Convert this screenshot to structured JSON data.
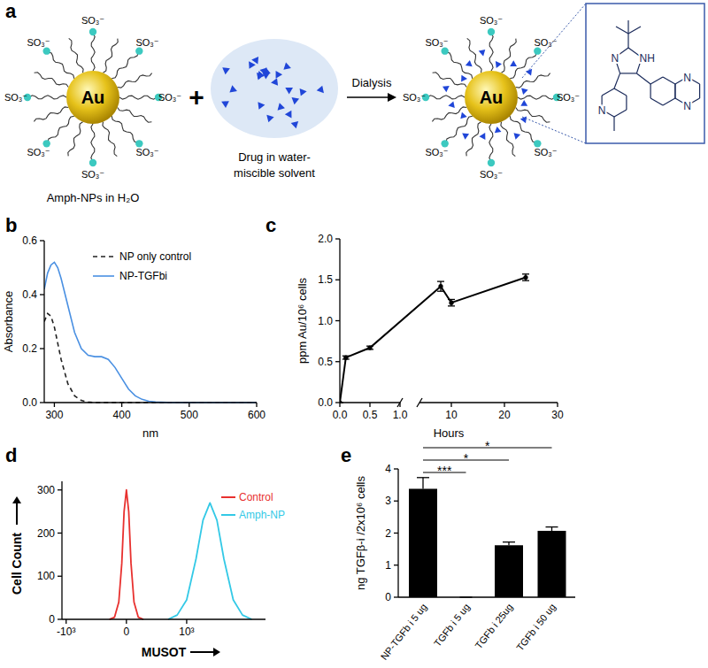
{
  "diagram": {
    "panel": "a",
    "core": "Au",
    "ligand_end": "SO₃⁻",
    "left_label": "Amph-NPs in H₂O",
    "plus": "+",
    "drug_label": [
      "Drug in water-",
      "miscible solvent"
    ],
    "arrow_label": "Dialysis",
    "molecule_atoms": [
      "N",
      "NH",
      "N",
      "N",
      "N"
    ]
  },
  "chart_data": [
    {
      "panel": "b",
      "type": "line",
      "x_label": "nm",
      "y_label": "Absorbance",
      "x": [
        285,
        290,
        295,
        300,
        305,
        310,
        320,
        330,
        340,
        350,
        360,
        370,
        380,
        390,
        400,
        410,
        420,
        430,
        440,
        450,
        475,
        500,
        550,
        600
      ],
      "series": [
        {
          "name": "NP only control",
          "color": "#222222",
          "line_style": "dashed",
          "values": [
            0.3,
            0.33,
            0.32,
            0.28,
            0.22,
            0.16,
            0.07,
            0.025,
            0.008,
            0.002,
            0,
            0,
            0,
            0,
            0,
            0,
            0,
            0,
            0,
            0,
            0,
            0,
            0,
            0
          ]
        },
        {
          "name": "NP-TGFbi",
          "color": "#4a90e2",
          "line_style": "solid",
          "values": [
            0.42,
            0.48,
            0.51,
            0.52,
            0.5,
            0.46,
            0.36,
            0.26,
            0.2,
            0.175,
            0.17,
            0.17,
            0.16,
            0.13,
            0.09,
            0.05,
            0.025,
            0.012,
            0.005,
            0.002,
            0,
            0,
            0,
            0
          ]
        }
      ],
      "xlim": [
        285,
        600
      ],
      "xticks": [
        300,
        400,
        500,
        600
      ],
      "ylim": [
        0,
        0.6
      ],
      "yticks": [
        {
          "value": 0,
          "label": "0.0"
        },
        0.2,
        0.4,
        0.6
      ],
      "legend": "upper center"
    },
    {
      "panel": "c",
      "type": "line",
      "x_label": "Hours",
      "y_label": "ppm Au/10⁶ cells",
      "x": [
        0,
        0.1,
        0.5,
        8,
        10,
        24
      ],
      "values": [
        0,
        0.55,
        0.67,
        1.42,
        1.22,
        1.53
      ],
      "errors": [
        0,
        0.02,
        0.02,
        0.06,
        0.04,
        0.04
      ],
      "color": "#000000",
      "marker": "circle",
      "xlim": [
        0,
        30
      ],
      "x_break": [
        1,
        4
      ],
      "xticks": [
        {
          "value": 0,
          "label": "0.0"
        },
        0.5,
        {
          "value": 1,
          "label": "1.0"
        },
        10,
        20,
        30
      ],
      "ylim": [
        0,
        2
      ],
      "yticks": [
        {
          "value": 0,
          "label": "0.0"
        },
        0.5,
        {
          "value": 1,
          "label": "1.0"
        },
        1.5,
        {
          "value": 2,
          "label": "2.0"
        }
      ]
    },
    {
      "panel": "d",
      "type": "line",
      "x_label": "MUSOT",
      "y_label": "Cell Count",
      "log": "x",
      "series": [
        {
          "name": "Control",
          "color": "#e8312f",
          "x": [
            -120,
            -80,
            -50,
            -30,
            -15,
            0,
            15,
            30,
            50,
            80,
            120
          ],
          "values": [
            0,
            5,
            40,
            130,
            250,
            300,
            250,
            130,
            40,
            5,
            0
          ]
        },
        {
          "name": "Amph-NP",
          "color": "#33c9e6",
          "x": [
            440,
            660,
            1000,
            1500,
            2030,
            2740,
            3700,
            5000,
            7480,
            11130,
            16600
          ],
          "values": [
            0,
            10,
            45,
            140,
            230,
            270,
            230,
            140,
            45,
            10,
            0
          ]
        }
      ],
      "xlim": [
        -1200,
        30000
      ],
      "xticks": [
        {
          "value": -1000,
          "label": "-10³"
        },
        0,
        {
          "value": 1000,
          "label": "10³"
        }
      ],
      "ylim": [
        0,
        320
      ],
      "yticks": [
        0,
        100,
        200,
        300
      ],
      "legend": "upper right"
    },
    {
      "panel": "e",
      "type": "bar",
      "y_label": "ng TGFβ-i /2x10⁶ cells",
      "categories": [
        "NP-TGFb i 5 ug",
        "TGFb i 5 ug",
        "TGFb i 25ug",
        "TGFb i 50 ug"
      ],
      "values": [
        3.38,
        0,
        1.62,
        2.07
      ],
      "errors": [
        0.35,
        0,
        0.1,
        0.12
      ],
      "color": "#000000",
      "ylim": [
        0,
        4
      ],
      "yticks": [
        0,
        1,
        2,
        3,
        4
      ],
      "annotations": [
        {
          "from": "NP-TGFb i 5 ug",
          "to": "TGFb i 5 ug",
          "label": "***"
        },
        {
          "from": "NP-TGFb i 5 ug",
          "to": "TGFb i 25ug",
          "label": "*"
        },
        {
          "from": "NP-TGFb i 5 ug",
          "to": "TGFb i 50 ug",
          "label": "*"
        }
      ]
    }
  ]
}
